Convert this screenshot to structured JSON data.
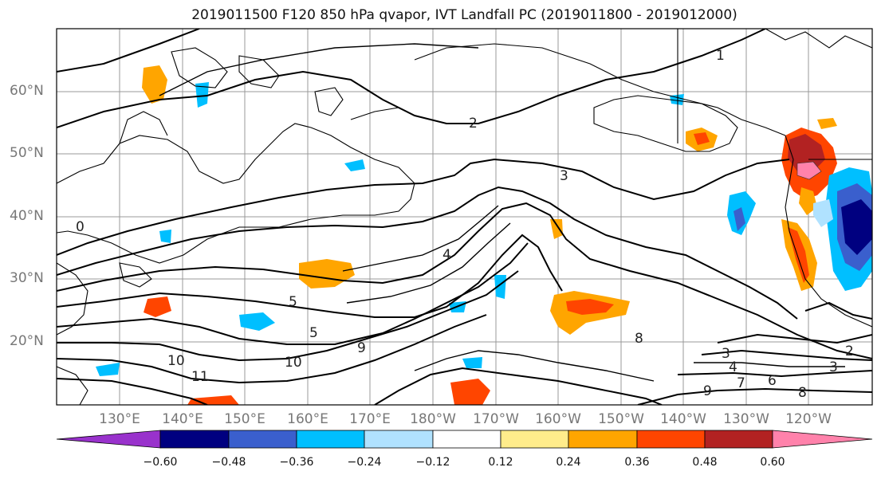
{
  "title": "2019011500 F120 850 hPa qvapor, IVT Landfall PC (2019011800 - 2019012000)",
  "latitude_labels": [
    "60°N",
    "50°N",
    "40°N",
    "30°N",
    "20°N"
  ],
  "longitude_labels": [
    "130°E",
    "140°E",
    "150°E",
    "160°E",
    "170°E",
    "180°W",
    "170°W",
    "160°W",
    "150°W",
    "140°W",
    "130°W",
    "120°W"
  ],
  "contour_labels": [
    "0",
    "1",
    "2",
    "3",
    "4",
    "5",
    "5",
    "6",
    "7",
    "8",
    "8",
    "9",
    "9",
    "10",
    "10",
    "11",
    "3",
    "4",
    "3",
    "2"
  ],
  "colorbar": {
    "ticks": [
      "−0.60",
      "−0.48",
      "−0.36",
      "−0.24",
      "−0.12",
      "0.12",
      "0.24",
      "0.36",
      "0.48",
      "0.60"
    ],
    "colors": [
      "#9932cc",
      "#000080",
      "#3a5fcd",
      "#00bfff",
      "#b0e2ff",
      "#ffffff",
      "#ffec8b",
      "#ffa500",
      "#ff4500",
      "#b22222",
      "#ff82ab"
    ]
  }
}
